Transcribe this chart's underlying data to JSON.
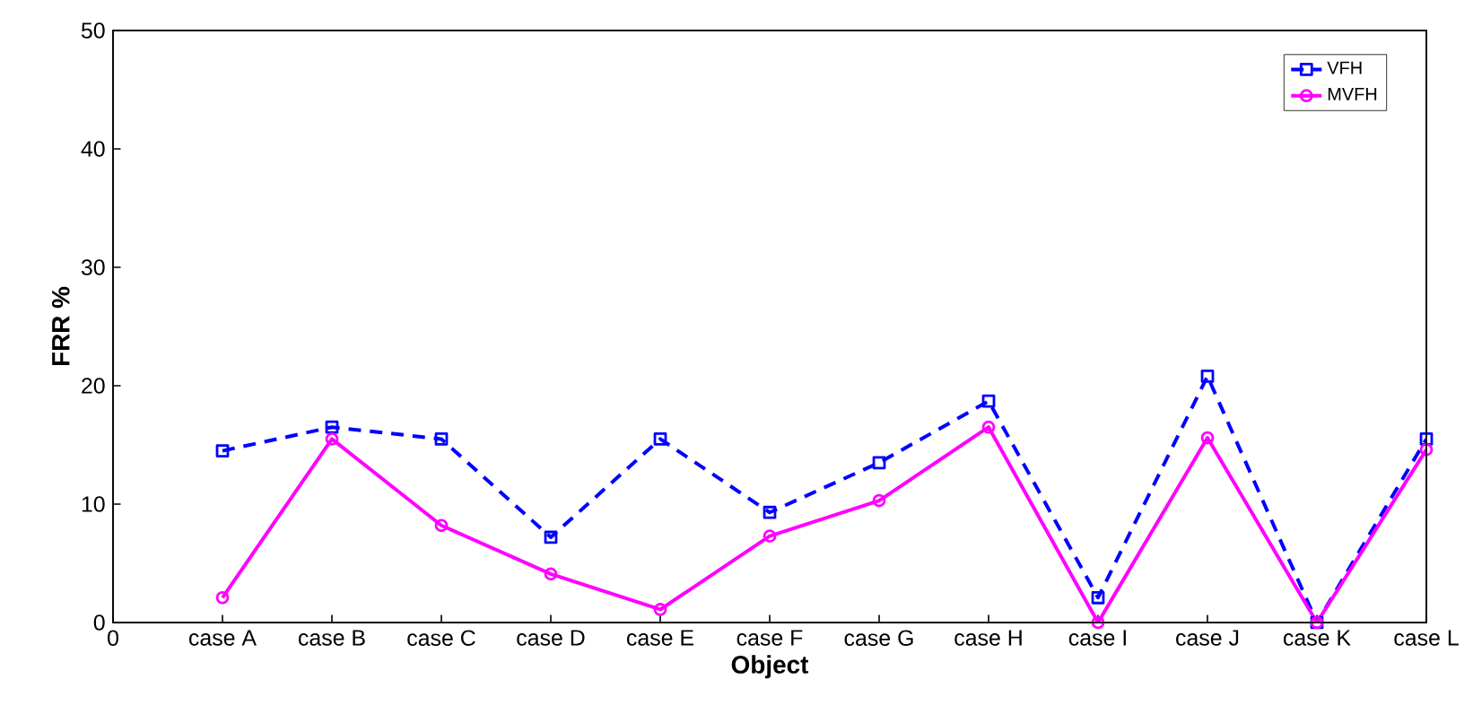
{
  "chart_data": {
    "type": "line",
    "xlabel": "Object",
    "ylabel": "FRR %",
    "categories": [
      "0",
      "case A",
      "case B",
      "case C",
      "case D",
      "case E",
      "case F",
      "case G",
      "case H",
      "case I",
      "case J",
      "case K",
      "case L"
    ],
    "ylim": [
      0,
      50
    ],
    "yticks": [
      0,
      10,
      20,
      30,
      40,
      50
    ],
    "series": [
      {
        "name": "VFH",
        "color": "#0000ff",
        "marker": "square",
        "line_style": "dashed",
        "values": [
          null,
          14.5,
          16.5,
          15.5,
          7.2,
          15.5,
          9.3,
          13.5,
          18.7,
          2.1,
          20.8,
          0,
          15.5
        ]
      },
      {
        "name": "MVFH",
        "color": "#ff00ff",
        "marker": "circle",
        "line_style": "solid",
        "values": [
          null,
          2.1,
          15.5,
          8.2,
          4.1,
          1.1,
          7.3,
          10.3,
          16.5,
          0,
          15.6,
          0,
          14.6
        ]
      }
    ],
    "grid": false,
    "legend": "top right"
  }
}
